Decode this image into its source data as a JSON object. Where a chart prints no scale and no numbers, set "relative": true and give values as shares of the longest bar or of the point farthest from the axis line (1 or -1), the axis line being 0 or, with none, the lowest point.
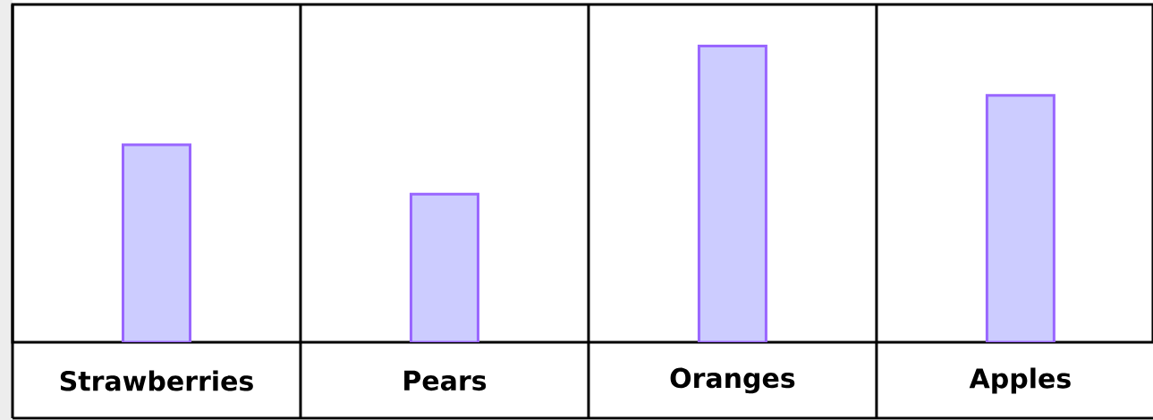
{
  "chart_data": {
    "type": "bar",
    "relative": true,
    "categories": [
      "Strawberries",
      "Pears",
      "Oranges",
      "Apples"
    ],
    "values": [
      0.6667,
      0.5,
      1,
      0.8333
    ],
    "color": "#ccccff"
  }
}
